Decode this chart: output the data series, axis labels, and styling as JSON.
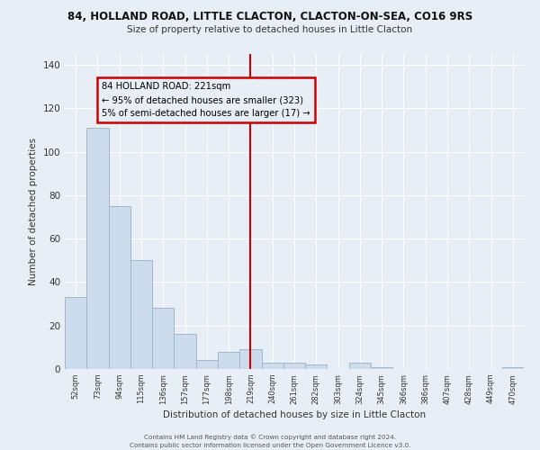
{
  "title": "84, HOLLAND ROAD, LITTLE CLACTON, CLACTON-ON-SEA, CO16 9RS",
  "subtitle": "Size of property relative to detached houses in Little Clacton",
  "xlabel": "Distribution of detached houses by size in Little Clacton",
  "ylabel": "Number of detached properties",
  "categories": [
    "52sqm",
    "73sqm",
    "94sqm",
    "115sqm",
    "136sqm",
    "157sqm",
    "177sqm",
    "198sqm",
    "219sqm",
    "240sqm",
    "261sqm",
    "282sqm",
    "303sqm",
    "324sqm",
    "345sqm",
    "366sqm",
    "386sqm",
    "407sqm",
    "428sqm",
    "449sqm",
    "470sqm"
  ],
  "values": [
    33,
    111,
    75,
    50,
    28,
    16,
    4,
    8,
    9,
    3,
    3,
    2,
    0,
    3,
    1,
    0,
    0,
    0,
    0,
    0,
    1
  ],
  "bar_color": "#ccdcec",
  "bar_edge_color": "#a0b8cc",
  "vline_x_index": 8,
  "vline_color": "#cc0000",
  "annotation_title": "84 HOLLAND ROAD: 221sqm",
  "annotation_line1": "← 95% of detached houses are smaller (323)",
  "annotation_line2": "5% of semi-detached houses are larger (17) →",
  "annotation_box_color": "#cc0000",
  "annotation_text_color": "#000000",
  "ylim": [
    0,
    145
  ],
  "yticks": [
    0,
    20,
    40,
    60,
    80,
    100,
    120,
    140
  ],
  "bg_color": "#e8eef5",
  "grid_color": "#ffffff",
  "footer1": "Contains HM Land Registry data © Crown copyright and database right 2024.",
  "footer2": "Contains public sector information licensed under the Open Government Licence v3.0."
}
